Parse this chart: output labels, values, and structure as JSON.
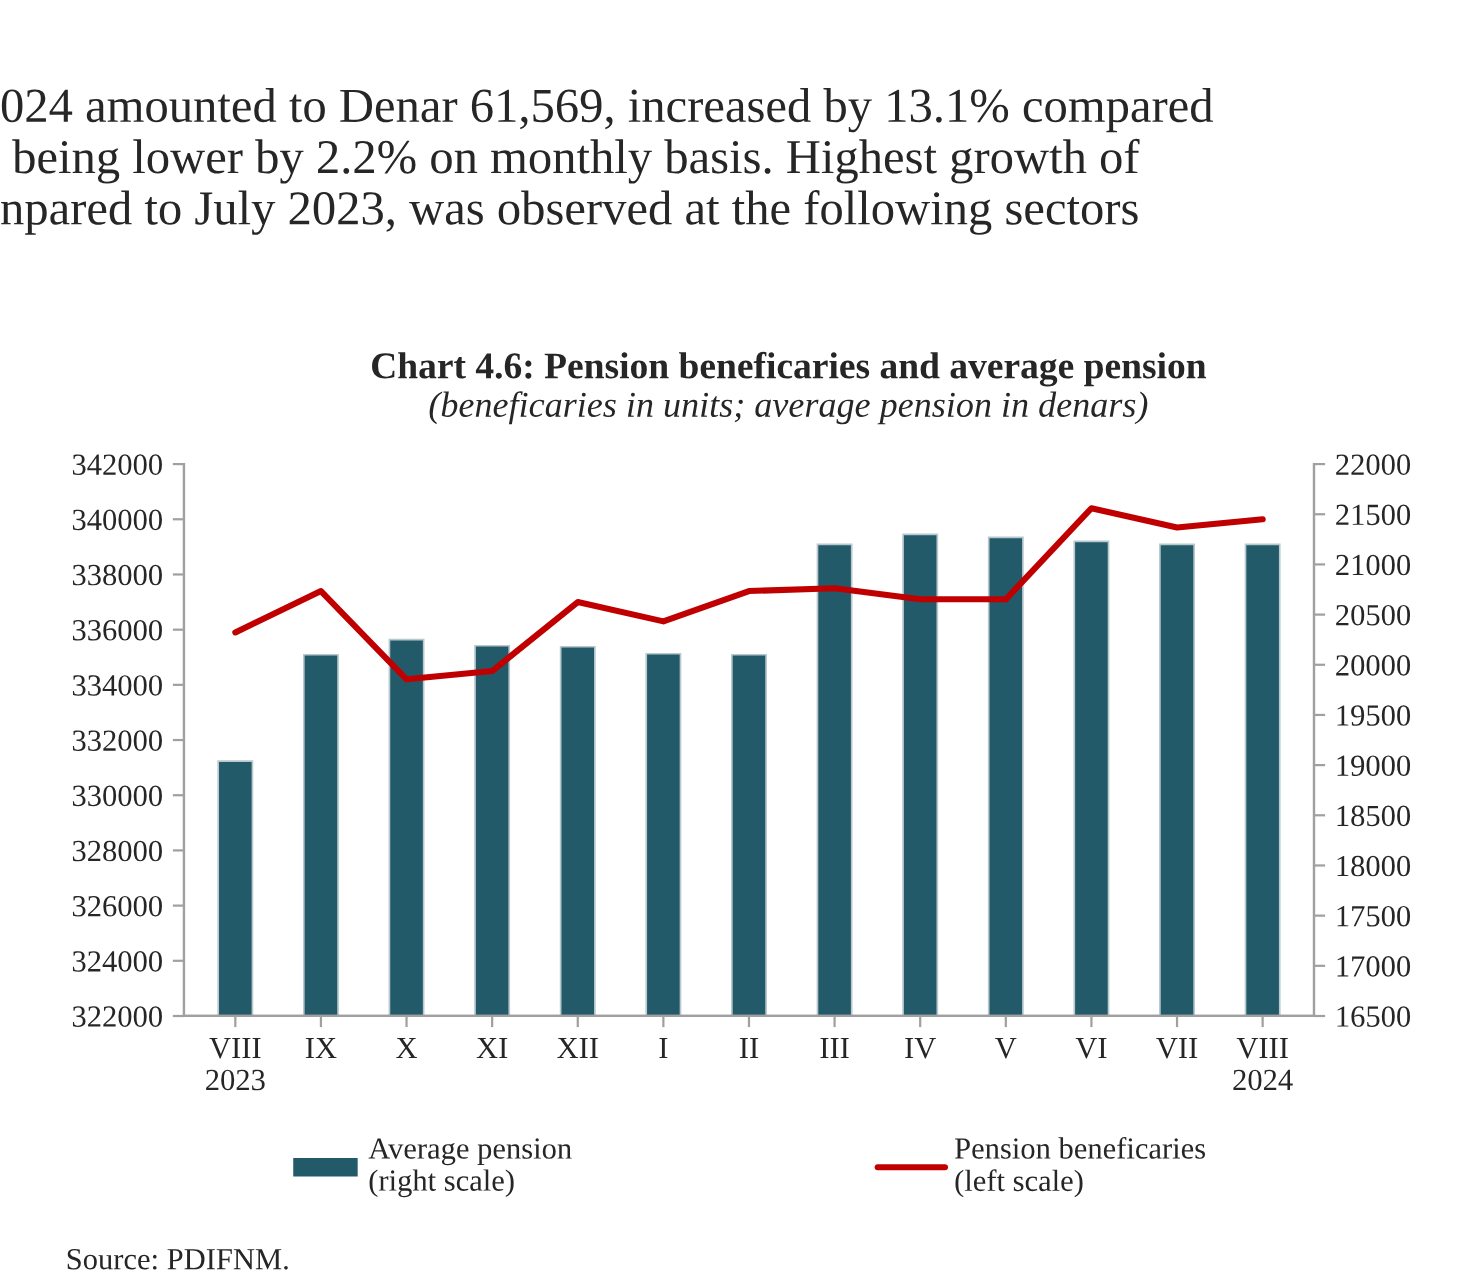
{
  "chart_data": {
    "type": "bar",
    "title": "Chart 4.6: Pension beneficaries and average pension",
    "subtitle": "(beneficaries in units; average pension in denars)",
    "categories": [
      "VIII\n2023",
      "IX",
      "X",
      "XI",
      "XII",
      "I",
      "II",
      "III",
      "IV",
      "V",
      "VI",
      "VII",
      "VIII\n2024"
    ],
    "series": [
      {
        "name": "Average pension\n(right scale)",
        "axis": "y2",
        "color": "#235a6a",
        "values": [
          19040,
          20100,
          20250,
          20190,
          20180,
          20110,
          20100,
          21200,
          21300,
          21270,
          21230,
          21200,
          21200
        ]
      },
      {
        "name": "Pension beneficaries\n(left scale)",
        "type": "line",
        "axis": "y",
        "color": "#c00000",
        "values": [
          335900,
          337400,
          334200,
          334500,
          337000,
          336300,
          337400,
          337500,
          337100,
          337100,
          340400,
          339700,
          340000
        ]
      }
    ],
    "ylim": [
      322000,
      342000
    ],
    "yticks": [
      322000,
      324000,
      326000,
      328000,
      330000,
      332000,
      334000,
      336000,
      338000,
      340000,
      342000
    ],
    "y2lim": [
      16500,
      22000
    ],
    "y2ticks": [
      16500,
      17000,
      17500,
      18000,
      18500,
      19000,
      19500,
      20000,
      20500,
      21000,
      21500,
      22000
    ],
    "grid": false,
    "legend": "bottom",
    "marker": "none",
    "line_style": "solid",
    "annotations": [
      "024 amounted to Denar 61,569, increased by 13.1% compared",
      " being lower by 2.2% on monthly basis. Highest growth of",
      "npared to July 2023, was observed at the following sectors",
      "Source: PDIFNM."
    ]
  }
}
